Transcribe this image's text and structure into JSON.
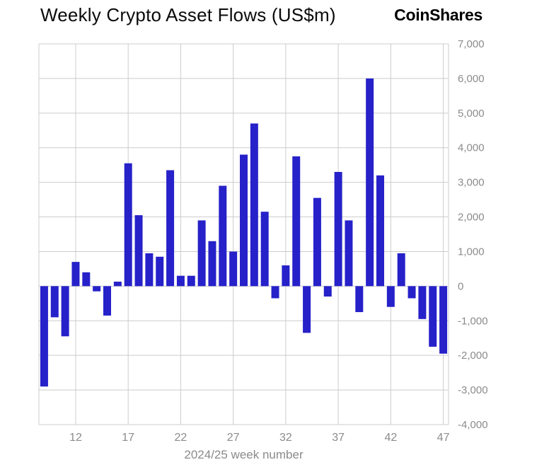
{
  "header": {
    "title": "Weekly Crypto Asset Flows (US$m)",
    "logo": "CoinShares"
  },
  "chart_data": {
    "type": "bar",
    "title": "Weekly Crypto Asset Flows (US$m)",
    "xlabel": "2024/25 week number",
    "ylabel": "",
    "x": [
      9,
      10,
      11,
      12,
      13,
      14,
      15,
      16,
      17,
      18,
      19,
      20,
      21,
      22,
      23,
      24,
      25,
      26,
      27,
      28,
      29,
      30,
      31,
      32,
      33,
      34,
      35,
      36,
      37,
      38,
      39,
      40,
      41,
      42,
      43,
      44,
      45,
      46,
      47
    ],
    "values": [
      -2900,
      -900,
      -1450,
      700,
      400,
      -150,
      -850,
      130,
      3550,
      2050,
      950,
      850,
      3350,
      300,
      300,
      1900,
      1300,
      2900,
      1000,
      3800,
      4700,
      2150,
      -350,
      600,
      3750,
      -1350,
      2550,
      -300,
      3300,
      1900,
      -750,
      6000,
      3200,
      -600,
      950,
      -350,
      -950,
      -1750,
      -1950
    ],
    "xticks": [
      12,
      17,
      22,
      27,
      32,
      37,
      42,
      47
    ],
    "ylim": [
      -4000,
      7000
    ],
    "ytick_step": 1000,
    "grid": true,
    "legend": "none",
    "y_axis_side": "right",
    "bar_color": "#2621c9",
    "gridline_color": "#cccccc",
    "axis_label_color": "#8b8b8b",
    "title_color": "#0b0b0b"
  }
}
